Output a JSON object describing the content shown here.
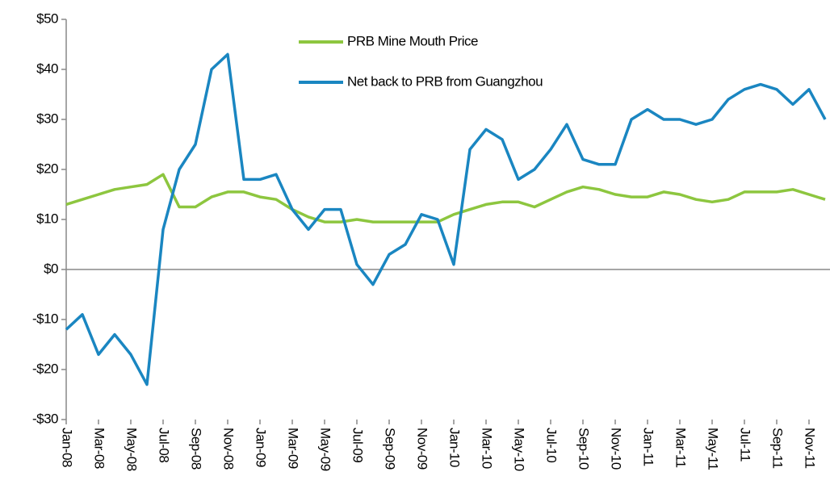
{
  "chart_data": {
    "type": "line",
    "categories": [
      "Jan-08",
      null,
      "Mar-08",
      null,
      "May-08",
      null,
      "Jul-08",
      null,
      "Sep-08",
      null,
      "Nov-08",
      null,
      "Jan-09",
      null,
      "Mar-09",
      null,
      "May-09",
      null,
      "Jul-09",
      null,
      "Sep-09",
      null,
      "Nov-09",
      null,
      "Jan-10",
      null,
      "Mar-10",
      null,
      "May-10",
      null,
      "Jul-10",
      null,
      "Sep-10",
      null,
      "Nov-10",
      null,
      "Jan-11",
      null,
      "Mar-11",
      null,
      "May-11",
      null,
      "Jul-11",
      null,
      "Sep-11",
      null,
      "Nov-11",
      null
    ],
    "series": [
      {
        "name": "PRB Mine Mouth Price",
        "color": "#8dc63f",
        "values": [
          13,
          14,
          15,
          16,
          16.5,
          17,
          19,
          12.5,
          12.5,
          14.5,
          15.5,
          15.5,
          14.5,
          14,
          12,
          10.5,
          9.5,
          9.5,
          10,
          9.5,
          9.5,
          9.5,
          9.5,
          9.5,
          11,
          12,
          13,
          13.5,
          13.5,
          12.5,
          14,
          15.5,
          16.5,
          16,
          15,
          14.5,
          14.5,
          15.5,
          15,
          14,
          13.5,
          14,
          15.5,
          15.5,
          15.5,
          16,
          15,
          14
        ]
      },
      {
        "name": "Net back to PRB from Guangzhou",
        "color": "#1a86c1",
        "values": [
          -12,
          -9,
          -17,
          -13,
          -17,
          -23,
          8,
          20,
          25,
          40,
          43,
          18,
          18,
          19,
          12,
          8,
          12,
          12,
          1,
          -3,
          3,
          5,
          11,
          10,
          1,
          24,
          28,
          26,
          18,
          20,
          24,
          29,
          22,
          21,
          21,
          30,
          32,
          30,
          30,
          29,
          30,
          34,
          36,
          37,
          36,
          33,
          36,
          30
        ]
      }
    ],
    "ylim": [
      -30,
      50
    ],
    "yticks": [
      {
        "value": -30,
        "label": "-$30"
      },
      {
        "value": -20,
        "label": "-$20"
      },
      {
        "value": -10,
        "label": "-$10"
      },
      {
        "value": 0,
        "label": "$0"
      },
      {
        "value": 10,
        "label": "$10"
      },
      {
        "value": 20,
        "label": "$20"
      },
      {
        "value": 30,
        "label": "$30"
      },
      {
        "value": 40,
        "label": "$40"
      },
      {
        "value": 50,
        "label": "$50"
      }
    ],
    "legend": "top"
  }
}
